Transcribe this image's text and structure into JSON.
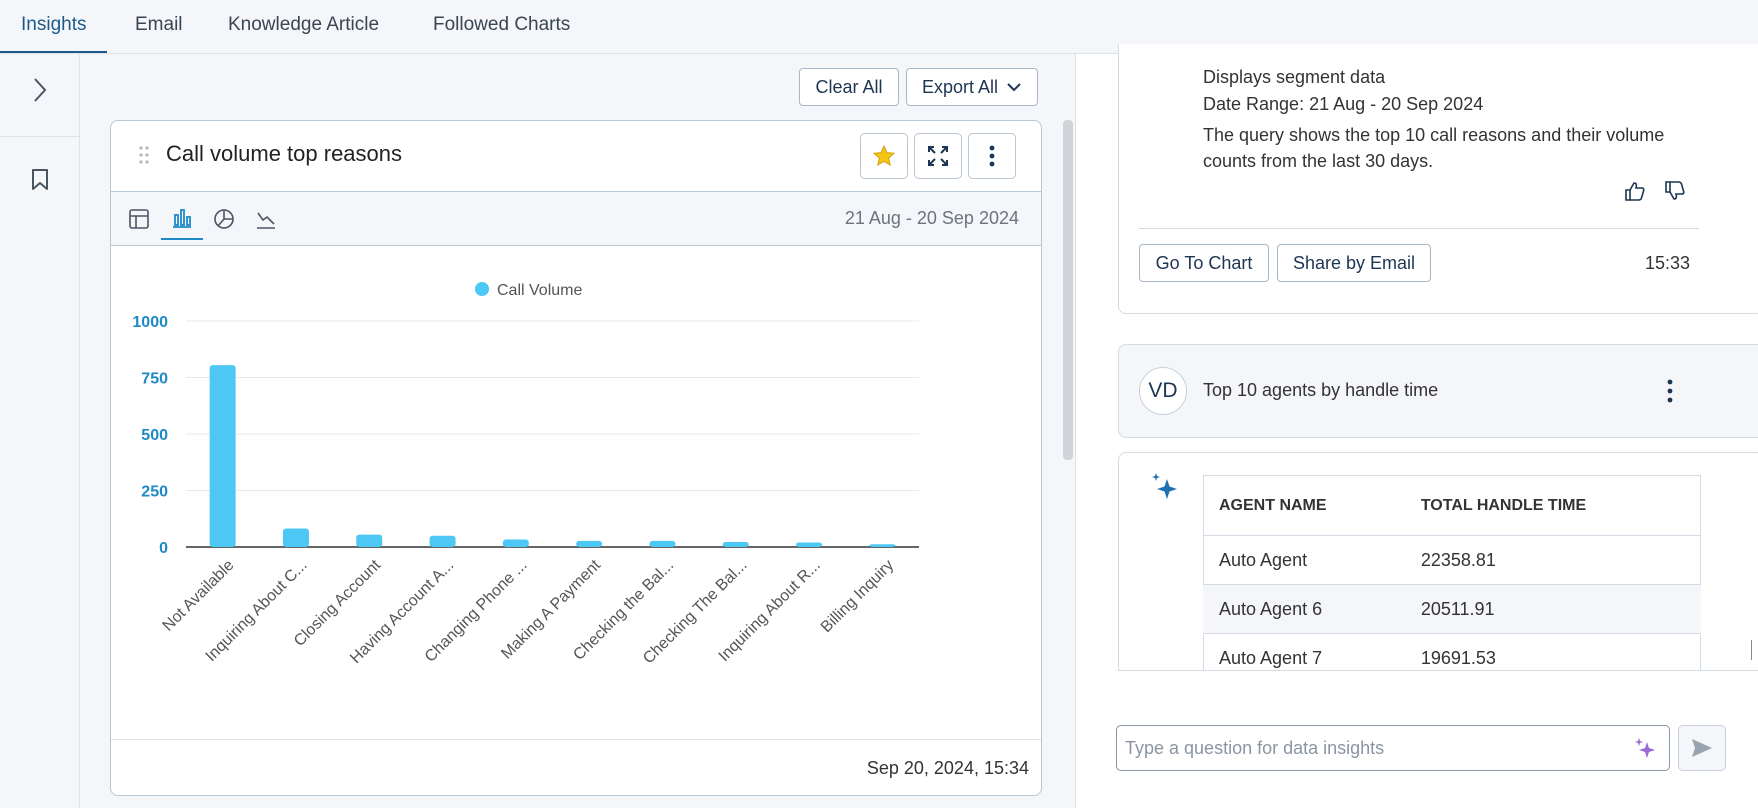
{
  "tabs": [
    {
      "label": "Insights",
      "active": true
    },
    {
      "label": "Email",
      "active": false
    },
    {
      "label": "Knowledge Article",
      "active": false
    },
    {
      "label": "Followed Charts",
      "active": false
    }
  ],
  "toolbar": {
    "clear_all": "Clear All",
    "export_all": "Export All"
  },
  "card": {
    "title": "Call volume top reasons",
    "date_range": "21 Aug - 20 Sep 2024",
    "footer_timestamp": "Sep 20, 2024, 15:34",
    "views": [
      "table-view-icon",
      "bar-chart-icon",
      "pie-chart-icon",
      "line-chart-icon"
    ],
    "active_view": "bar-chart-icon"
  },
  "chart_data": {
    "type": "bar",
    "title": "",
    "legend": [
      "Call Volume"
    ],
    "legend_position": "top-center",
    "categories": [
      "Not Available",
      "Inquiring About C...",
      "Closing Account",
      "Having Account A...",
      "Changing Phone ...",
      "Making A Payment",
      "Checking the Bal...",
      "Checking The Bal...",
      "Inquiring About R...",
      "Billing Inquiry"
    ],
    "series": [
      {
        "name": "Call Volume",
        "values": [
          805,
          82,
          55,
          50,
          33,
          27,
          27,
          22,
          20,
          12
        ]
      }
    ],
    "yticks": [
      "0",
      "250",
      "500",
      "750",
      "1000"
    ],
    "ylim": [
      0,
      1000
    ],
    "xlabel": "",
    "ylabel": "",
    "grid": true,
    "color": "#4dc8f4"
  },
  "right": {
    "message": {
      "line1": "Displays segment data",
      "line2": "Date Range: 21 Aug - 20 Sep 2024",
      "description": "The query shows the top 10 call reasons and their volume counts from the last 30 days.",
      "go_to_chart": "Go To Chart",
      "share_by_email": "Share by Email",
      "time": "15:33"
    },
    "question": {
      "avatar": "VD",
      "text": "Top 10 agents by handle time"
    },
    "table": {
      "headers": [
        "AGENT NAME",
        "TOTAL HANDLE TIME"
      ],
      "rows": [
        [
          "Auto Agent",
          "22358.81"
        ],
        [
          "Auto Agent 6",
          "20511.91"
        ],
        [
          "Auto Agent 7",
          "19691.53"
        ]
      ]
    },
    "input": {
      "placeholder": "Type a question for data insights",
      "value": ""
    }
  }
}
